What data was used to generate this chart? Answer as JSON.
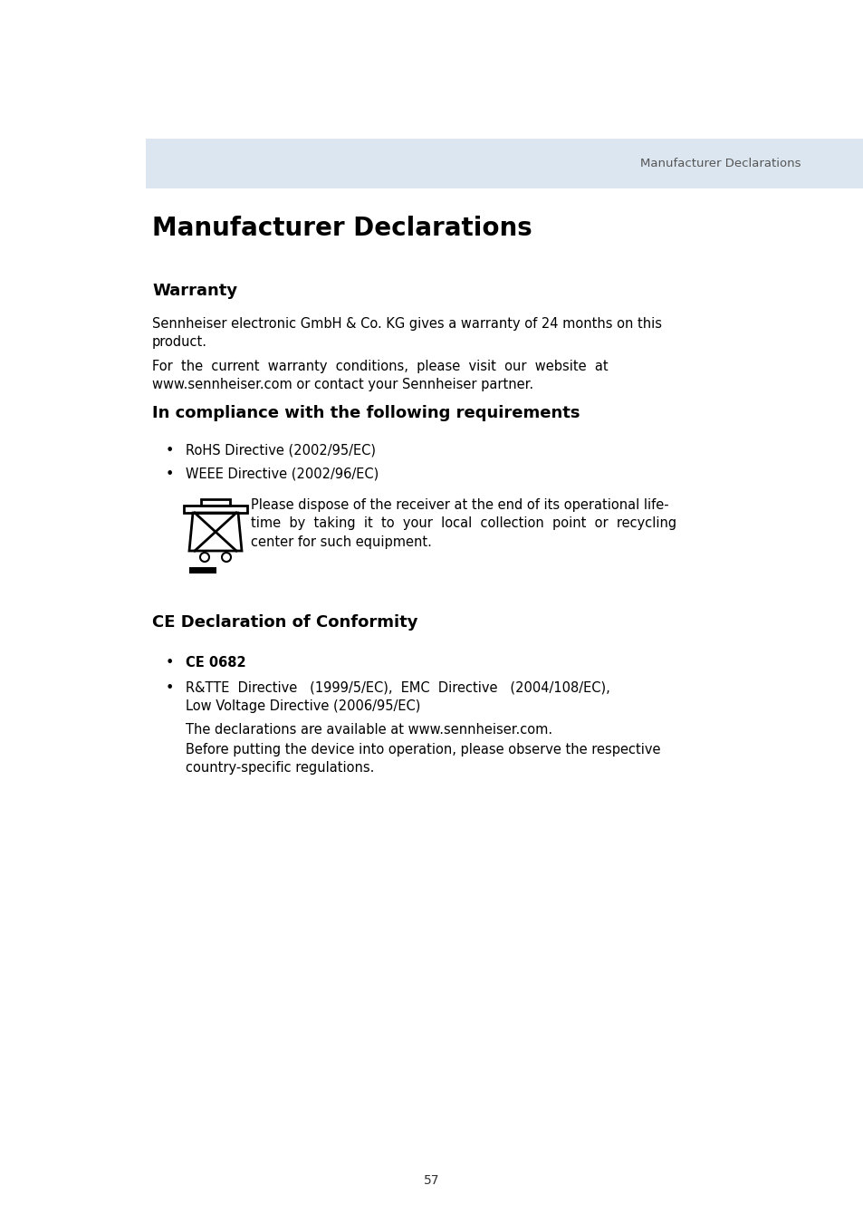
{
  "bg_color": "#ffffff",
  "header_bg_color": "#dce6f1",
  "header_text": "Manufacturer Declarations",
  "header_text_color": "#555555",
  "main_title": "Manufacturer Declarations",
  "section1_title": "Warranty",
  "section1_body1": "Sennheiser electronic GmbH & Co. KG gives a warranty of 24 months on this\nproduct.",
  "section1_body2": "For  the  current  warranty  conditions,  please  visit  our  website  at\nwww.sennheiser.com or contact your Sennheiser partner.",
  "section2_title": "In compliance with the following requirements",
  "bullet1": "RoHS Directive (2002/95/EC)",
  "bullet2": "WEEE Directive (2002/96/EC)",
  "recycle_text": "Please dispose of the receiver at the end of its operational life-\ntime  by  taking  it  to  your  local  collection  point  or  recycling\ncenter for such equipment.",
  "section3_title": "CE Declaration of Conformity",
  "ce_mark": "CE 0682",
  "directive_line1": "R&TTE  Directive   (1999/5/EC),  EMC  Directive   (2004/108/EC),",
  "directive_line2": "Low Voltage Directive (2006/95/EC)",
  "decl_text": "The declarations are available at www.sennheiser.com.",
  "before_text": "Before putting the device into operation, please observe the respective\ncountry-specific regulations.",
  "page_number": "57",
  "body_fontsize": 10.5,
  "header_fontsize": 9.5,
  "title_fontsize": 20,
  "section_fontsize": 13
}
